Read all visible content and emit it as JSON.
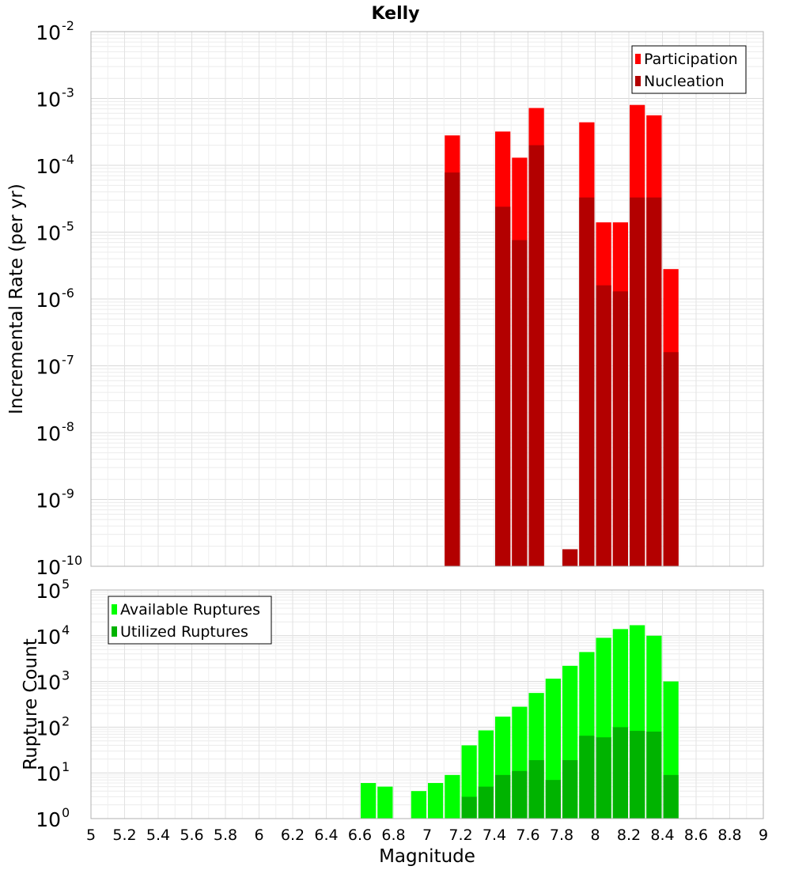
{
  "title": "Kelly",
  "chart_data": [
    {
      "type": "bar",
      "ylabel": "Incremental Rate (per yr)",
      "y_scale": "log",
      "ylim": [
        1e-10,
        0.01
      ],
      "y_tick_exponents": [
        "-2",
        "-3",
        "-4",
        "-5",
        "-6",
        "-7",
        "-8",
        "-9",
        "-10"
      ],
      "y_tick_base": "10",
      "xlim": [
        5,
        9
      ],
      "bar_width": 0.1,
      "legend": {
        "position": "top-right"
      },
      "series": [
        {
          "name": "Participation",
          "color": "#ff0000",
          "x": [
            7.15,
            7.45,
            7.55,
            7.65,
            7.95,
            8.05,
            8.15,
            8.25,
            8.35,
            8.45
          ],
          "values": [
            0.00028,
            0.00032,
            0.00013,
            0.00072,
            0.00044,
            1.4e-05,
            1.4e-05,
            0.0008,
            0.00056,
            2.8e-06
          ]
        },
        {
          "name": "Nucleation",
          "color": "#b30000",
          "x": [
            7.15,
            7.45,
            7.55,
            7.65,
            7.85,
            7.95,
            8.05,
            8.15,
            8.25,
            8.35,
            8.45
          ],
          "values": [
            7.8e-05,
            2.4e-05,
            7.6e-06,
            0.0002,
            1.8e-10,
            3.3e-05,
            1.6e-06,
            1.3e-06,
            3.3e-05,
            3.3e-05,
            1.6e-07
          ]
        }
      ]
    },
    {
      "type": "bar",
      "xlabel": "Magnitude",
      "ylabel": "Rupture Count",
      "y_scale": "log",
      "ylim": [
        1,
        100000.0
      ],
      "y_tick_exponents": [
        "5",
        "4",
        "3",
        "2",
        "1",
        "0"
      ],
      "y_tick_base": "10",
      "xlim": [
        5,
        9
      ],
      "x_ticks": [
        "5",
        "5.2",
        "5.4",
        "5.6",
        "5.8",
        "6",
        "6.2",
        "6.4",
        "6.6",
        "6.8",
        "7",
        "7.2",
        "7.4",
        "7.6",
        "7.8",
        "8",
        "8.2",
        "8.4",
        "8.6",
        "8.8",
        "9"
      ],
      "bar_width": 0.1,
      "legend": {
        "position": "top-left"
      },
      "series": [
        {
          "name": "Available Ruptures",
          "color": "#00ff00",
          "x": [
            6.65,
            6.75,
            6.95,
            7.05,
            7.15,
            7.25,
            7.35,
            7.45,
            7.55,
            7.65,
            7.75,
            7.85,
            7.95,
            8.05,
            8.15,
            8.25,
            8.35,
            8.45
          ],
          "values": [
            6,
            5,
            4,
            6,
            9,
            40,
            85,
            170,
            280,
            560,
            1150,
            2200,
            4400,
            9000,
            14000,
            17000,
            10000,
            1000
          ]
        },
        {
          "name": "Utilized Ruptures",
          "color": "#00b300",
          "x": [
            7.05,
            7.15,
            7.25,
            7.35,
            7.45,
            7.55,
            7.65,
            7.75,
            7.85,
            7.95,
            8.05,
            8.15,
            8.25,
            8.35,
            8.45
          ],
          "values": [
            1,
            1,
            3,
            5,
            9,
            11,
            19,
            7,
            19,
            65,
            60,
            100,
            83,
            80,
            9
          ]
        }
      ]
    }
  ]
}
